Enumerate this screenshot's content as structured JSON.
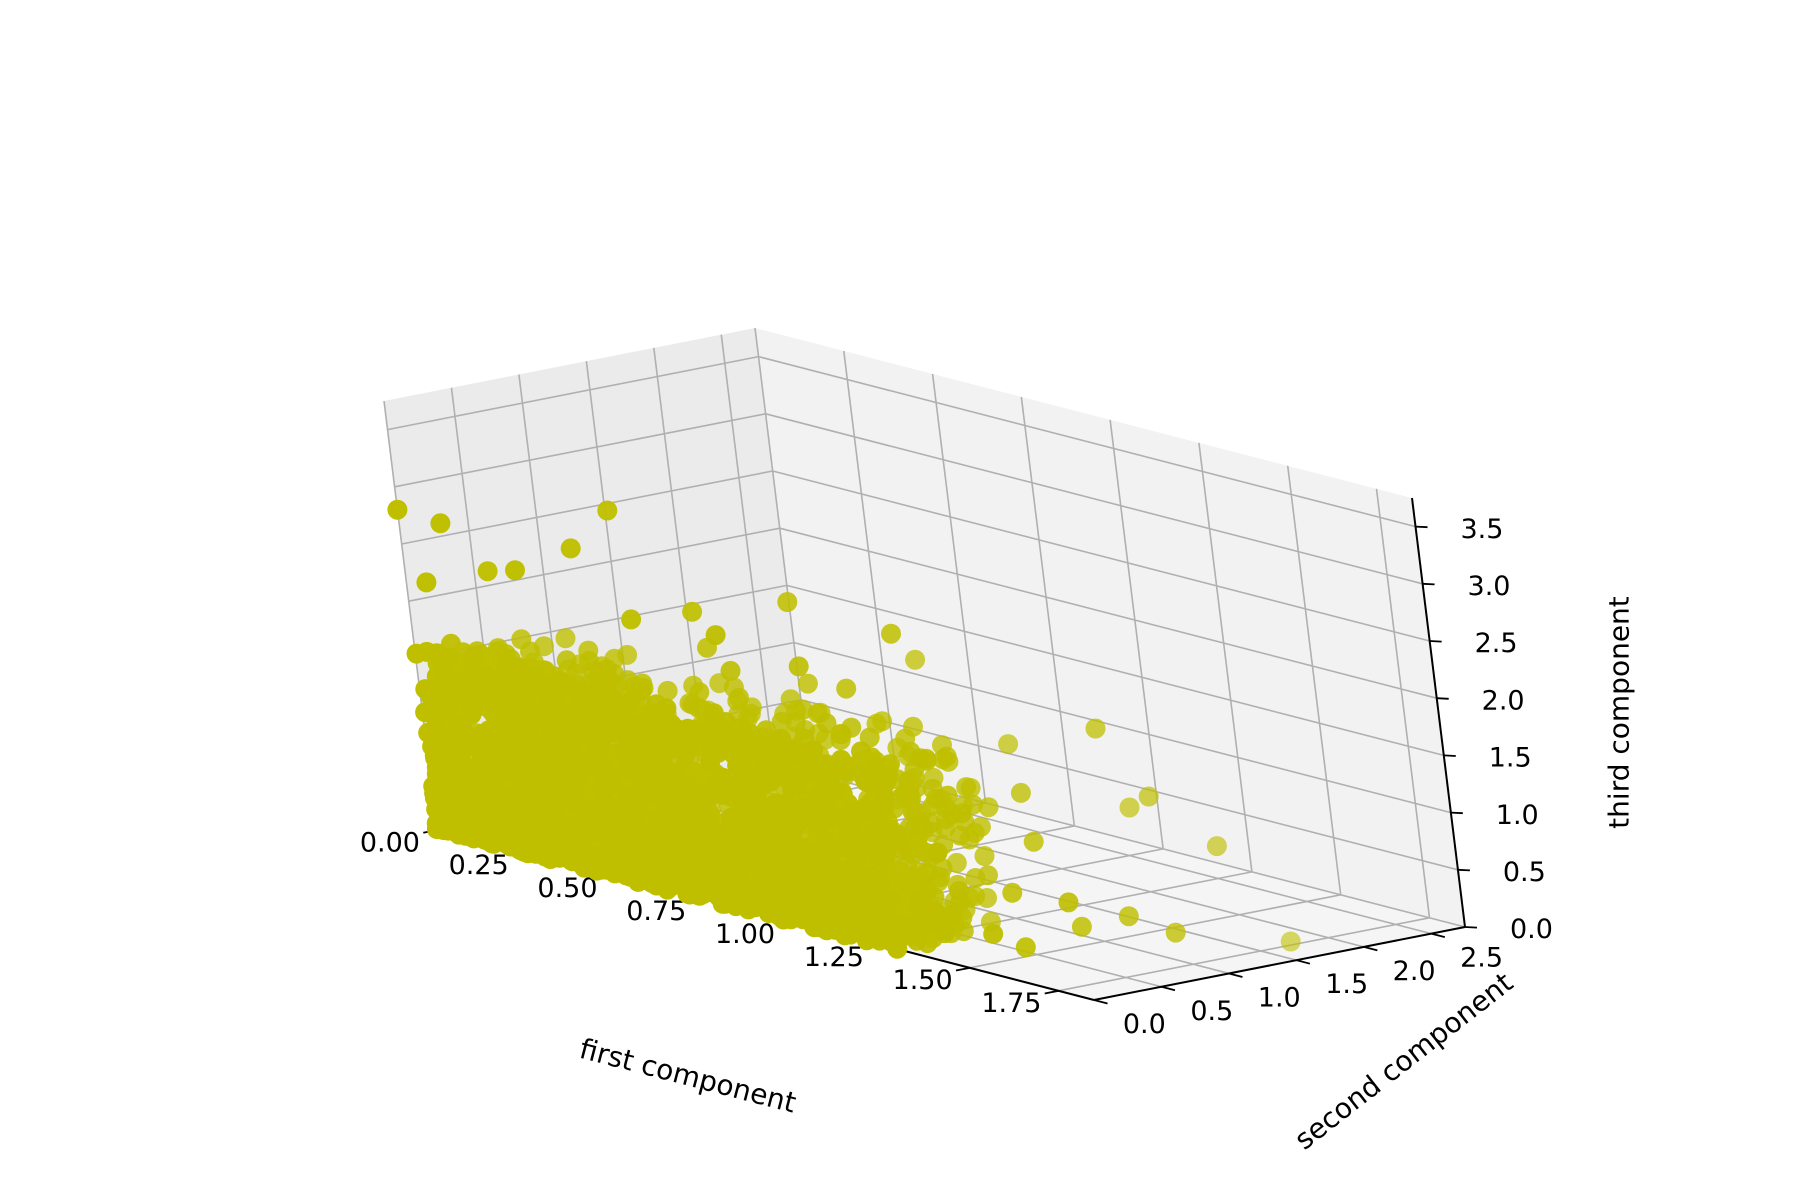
{
  "chart_data": {
    "type": "scatter",
    "projection": "3d",
    "title": "",
    "xlabel": "first component",
    "ylabel": "second component",
    "zlabel": "third component",
    "xlim": [
      0.0,
      1.85
    ],
    "ylim": [
      0.0,
      2.75
    ],
    "zlim": [
      0.0,
      3.75
    ],
    "xticks": [
      "0.00",
      "0.25",
      "0.50",
      "0.75",
      "1.00",
      "1.25",
      "1.50",
      "1.75"
    ],
    "yticks": [
      "0.0",
      "0.5",
      "1.0",
      "1.5",
      "2.0",
      "2.5"
    ],
    "zticks": [
      "0.0",
      "0.5",
      "1.0",
      "1.5",
      "2.0",
      "2.5",
      "3.0",
      "3.5"
    ],
    "grid": true,
    "marker_color": "#bfbf00",
    "pane_colors": {
      "left": "#ebebeb",
      "back": "#f2f2f2",
      "floor": "#f5f5f5"
    },
    "dense_region": {
      "x_range": [
        0.0,
        1.3
      ],
      "y_range": [
        0.0,
        0.9
      ],
      "z_range": [
        0.0,
        1.6
      ]
    },
    "points": [
      [
        0.0,
        0.0,
        2.8
      ],
      [
        0.1,
        0.05,
        2.75
      ],
      [
        0.55,
        0.15,
        3.2
      ],
      [
        0.45,
        0.1,
        2.8
      ],
      [
        0.9,
        0.5,
        2.6
      ],
      [
        1.15,
        0.6,
        2.5
      ],
      [
        1.55,
        1.0,
        1.9
      ],
      [
        1.8,
        1.6,
        0.1
      ],
      [
        1.5,
        0.2,
        0.25
      ],
      [
        1.6,
        0.6,
        0.3
      ],
      [
        1.7,
        0.7,
        0.45
      ],
      [
        1.4,
        0.1,
        0.2
      ],
      [
        1.3,
        0.15,
        0.55
      ],
      [
        1.2,
        0.3,
        0.9
      ],
      [
        1.25,
        0.5,
        1.1
      ],
      [
        1.45,
        0.7,
        0.9
      ],
      [
        1.35,
        0.9,
        1.2
      ],
      [
        1.1,
        0.8,
        1.6
      ],
      [
        1.0,
        0.6,
        1.9
      ],
      [
        0.95,
        0.4,
        2.1
      ],
      [
        0.8,
        0.2,
        2.3
      ],
      [
        0.7,
        0.3,
        2.4
      ],
      [
        0.6,
        0.1,
        2.3
      ],
      [
        0.3,
        0.05,
        2.5
      ],
      [
        0.2,
        0.1,
        2.4
      ],
      [
        0.05,
        0.02,
        2.2
      ],
      [
        1.6,
        1.2,
        1.3
      ],
      [
        1.7,
        1.4,
        0.9
      ],
      [
        1.5,
        1.3,
        1.1
      ],
      [
        1.65,
        0.4,
        0.6
      ],
      [
        1.75,
        0.9,
        0.3
      ],
      [
        1.55,
        0.3,
        0.15
      ],
      [
        1.1,
        0.05,
        0.3
      ],
      [
        1.3,
        0.4,
        0.2
      ],
      [
        1.45,
        0.5,
        0.5
      ],
      [
        0.75,
        0.4,
        1.9
      ],
      [
        0.65,
        0.5,
        2.0
      ],
      [
        0.85,
        0.7,
        1.8
      ],
      [
        1.05,
        1.0,
        2.1
      ],
      [
        1.25,
        1.1,
        1.5
      ]
    ]
  }
}
